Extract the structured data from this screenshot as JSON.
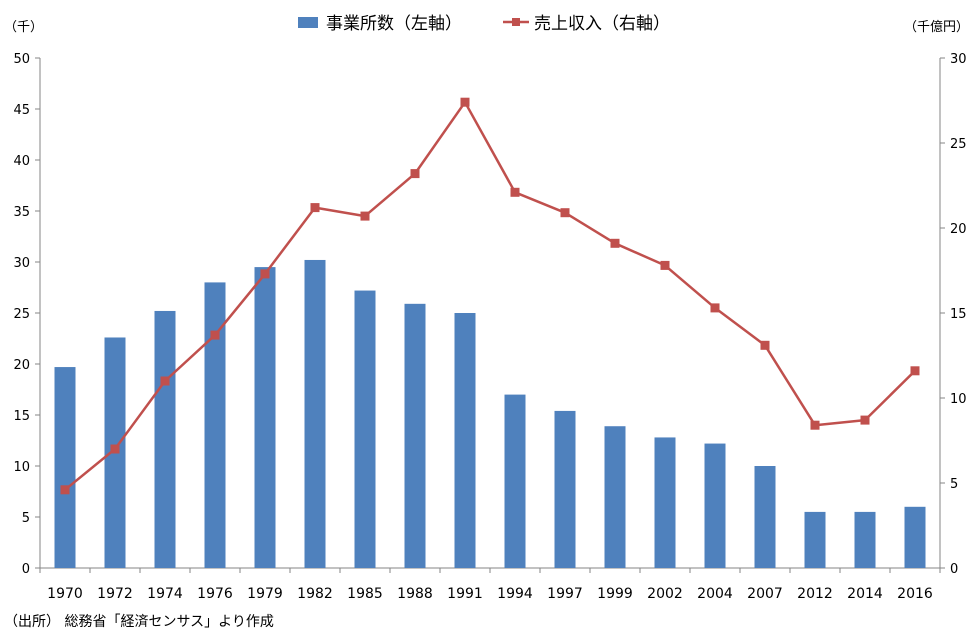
{
  "chart_data": {
    "type": "bar",
    "categories": [
      "1970",
      "1972",
      "1974",
      "1976",
      "1979",
      "1982",
      "1985",
      "1988",
      "1991",
      "1994",
      "1997",
      "1999",
      "2002",
      "2004",
      "2007",
      "2012",
      "2014",
      "2016"
    ],
    "series": [
      {
        "name": "事業所数（左軸）",
        "type": "bar",
        "axis": "left",
        "color": "#4F81BD",
        "values": [
          19.7,
          22.6,
          25.2,
          28.0,
          29.5,
          30.2,
          27.2,
          25.9,
          25.0,
          17.0,
          15.4,
          13.9,
          12.8,
          12.2,
          10.0,
          5.5,
          5.5,
          6.0
        ]
      },
      {
        "name": "売上収入（右軸）",
        "type": "line",
        "axis": "right",
        "color": "#C0504D",
        "values": [
          4.6,
          7.0,
          11.0,
          13.7,
          17.3,
          21.2,
          20.7,
          23.2,
          27.4,
          22.1,
          20.9,
          19.1,
          17.8,
          15.3,
          13.1,
          8.4,
          8.7,
          11.6
        ]
      }
    ],
    "y_left": {
      "unit_label": "（千）",
      "ylim": [
        0,
        50
      ],
      "ticks": [
        "0",
        "5",
        "10",
        "15",
        "20",
        "25",
        "30",
        "35",
        "40",
        "45",
        "50"
      ]
    },
    "y_right": {
      "unit_label": "（千億円）",
      "ylim": [
        0,
        30
      ],
      "ticks": [
        "0",
        "5",
        "10",
        "15",
        "20",
        "25",
        "30"
      ]
    },
    "grid": false,
    "legend_position": "top-center",
    "source_note": "（出所） 総務省「経済センサス」より作成"
  }
}
